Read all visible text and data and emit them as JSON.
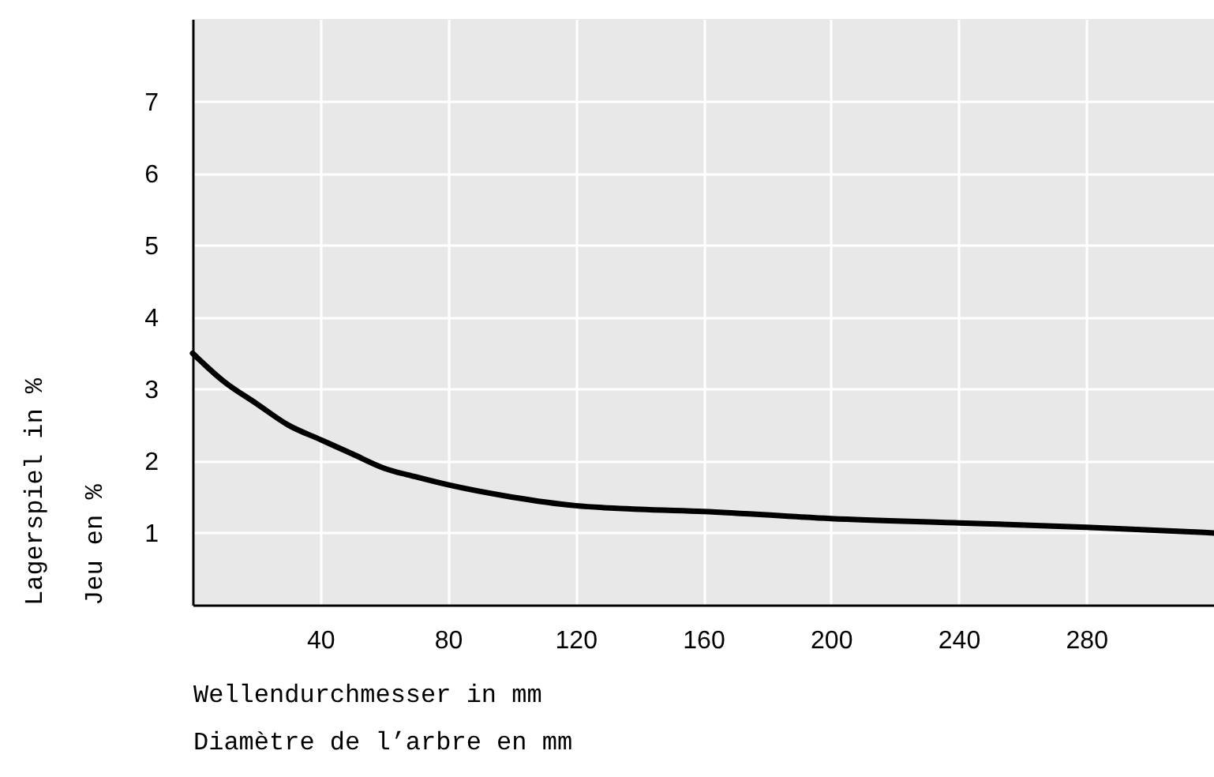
{
  "chart_data": {
    "type": "line",
    "xlabel": "Wellendurchmesser in mm\nDiamètre de l’arbre en mm",
    "ylabel": "Lagerspiel in %\nJeu en %",
    "x": [
      0,
      10,
      20,
      30,
      40,
      50,
      60,
      70,
      80,
      100,
      120,
      140,
      160,
      200,
      240,
      280,
      320
    ],
    "series": [
      {
        "color": "#000000",
        "values": [
          3.5,
          3.1,
          2.8,
          2.5,
          2.3,
          2.1,
          1.9,
          1.78,
          1.67,
          1.5,
          1.38,
          1.33,
          1.3,
          1.2,
          1.14,
          1.08,
          1.0
        ]
      }
    ],
    "xlim": [
      0,
      320
    ],
    "xticks": [
      40,
      80,
      120,
      160,
      200,
      240,
      280
    ],
    "ylim": [
      0,
      8.15
    ],
    "yticks": [
      1,
      2,
      3,
      4,
      5,
      6,
      7
    ],
    "grid": true,
    "marker": "none",
    "line_style": "solid"
  }
}
